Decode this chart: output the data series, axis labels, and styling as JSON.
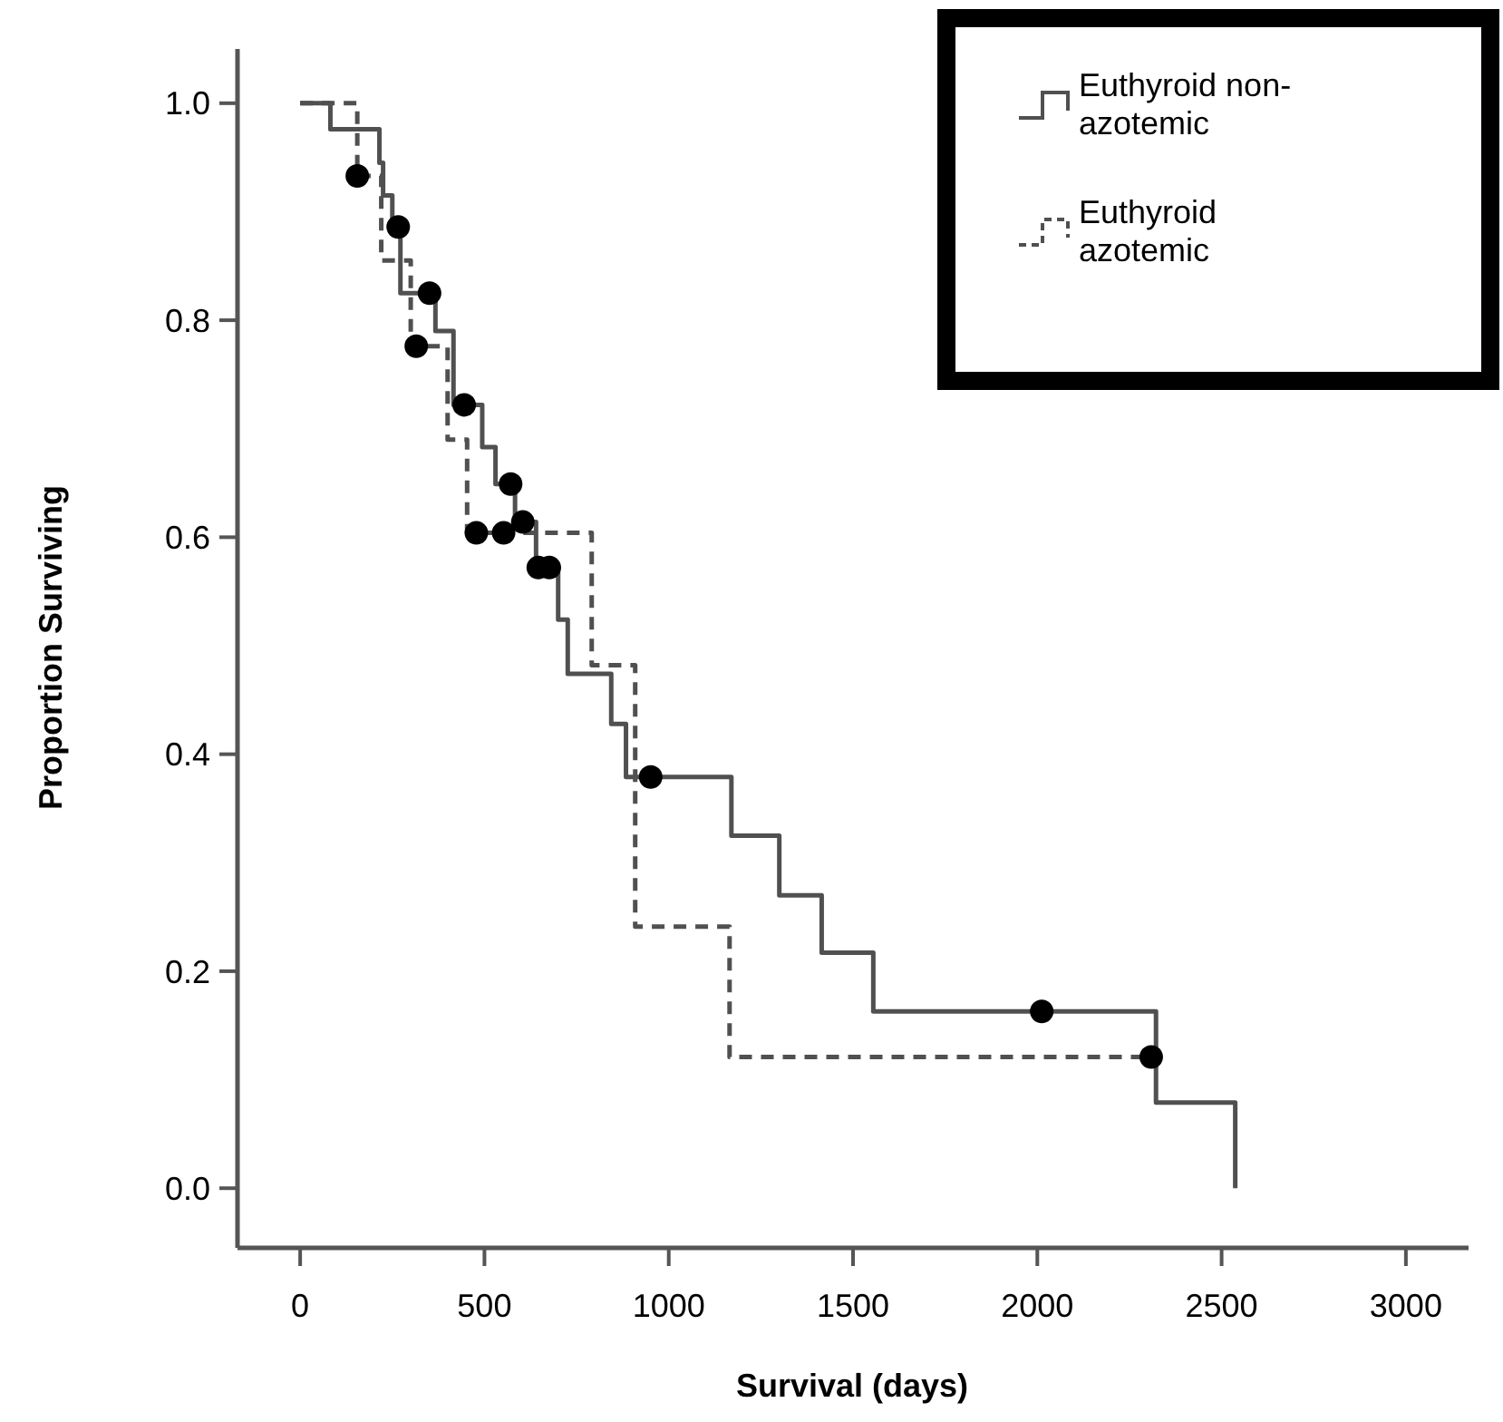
{
  "chart_data": {
    "type": "step",
    "xlabel": "Survival (days)",
    "ylabel": "Proportion Surviving",
    "xlim": [
      -170,
      3170
    ],
    "ylim": [
      -0.055,
      1.05
    ],
    "xticks": [
      0,
      500,
      1000,
      1500,
      2000,
      2500,
      3000
    ],
    "yticks": [
      {
        "value": 0,
        "label": "0.0"
      },
      {
        "value": 0.2,
        "label": "0.2"
      },
      {
        "value": 0.4,
        "label": "0.4"
      },
      {
        "value": 0.6,
        "label": "0.6"
      },
      {
        "value": 0.8,
        "label": "0.8"
      },
      {
        "value": 1,
        "label": "1.0"
      }
    ],
    "grid": false,
    "legend": "top right",
    "series": [
      {
        "name": "Euthyroid non-azotemic",
        "color": "#505050",
        "line_style": "solid",
        "marker": "none",
        "x": [
          0,
          82,
          215,
          225,
          250,
          272,
          367,
          416,
          494,
          530,
          583,
          640,
          700,
          726,
          844,
          884,
          1170,
          1300,
          1415,
          1555,
          2322,
          2537
        ],
        "values": [
          1.0,
          0.976,
          0.945,
          0.915,
          0.886,
          0.825,
          0.79,
          0.722,
          0.683,
          0.649,
          0.614,
          0.572,
          0.524,
          0.474,
          0.428,
          0.379,
          0.325,
          0.27,
          0.217,
          0.163,
          0.079,
          0.0
        ]
      },
      {
        "name": "Euthyroid azotemic",
        "color": "#505050",
        "line_style": "dashed",
        "marker": "none",
        "x": [
          0,
          155,
          220,
          300,
          400,
          453,
          791,
          909,
          1165,
          2309
        ],
        "values": [
          1.0,
          0.933,
          0.855,
          0.776,
          0.69,
          0.604,
          0.482,
          0.241,
          0.121,
          0.121
        ]
      },
      {
        "type": "scatter",
        "color": "#000000",
        "marker": "circle",
        "x": [
          266,
          351,
          445,
          571,
          604,
          646,
          676,
          951,
          2012
        ],
        "values": [
          0.886,
          0.825,
          0.722,
          0.649,
          0.614,
          0.572,
          0.572,
          0.379,
          0.163
        ]
      },
      {
        "type": "scatter",
        "color": "#000000",
        "marker": "circle",
        "x": [
          155,
          315,
          478,
          552,
          2309
        ],
        "values": [
          0.933,
          0.776,
          0.604,
          0.604,
          0.121
        ]
      }
    ]
  }
}
